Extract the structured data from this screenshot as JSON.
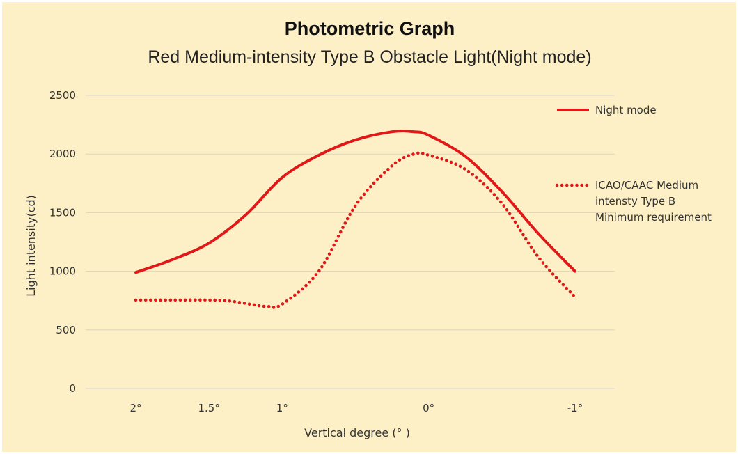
{
  "chart_data": {
    "type": "line",
    "title": "Photometric Graph",
    "subtitle": "Red Medium-intensity Type B Obstacle Light(Night mode)",
    "xlabel": "Vertical degree (° )",
    "ylabel": "Light intensity(cd)",
    "ylim": [
      0,
      2500
    ],
    "yticks": [
      0,
      500,
      1000,
      1500,
      2000,
      2500
    ],
    "x_direction": "decreasing left to right",
    "x_tick_labels": [
      "2°",
      "1.5°",
      "1°",
      "0°",
      "-1°"
    ],
    "x_ticks": [
      2,
      1.5,
      1,
      0,
      -1
    ],
    "grid": "horizontal",
    "legend_position": "right",
    "series": [
      {
        "name": "Night mode",
        "style": "solid",
        "color": "#e01818",
        "x": [
          2,
          1.75,
          1.5,
          1.25,
          1,
          0.75,
          0.5,
          0.25,
          0.1,
          0,
          -0.25,
          -0.5,
          -0.75,
          -1
        ],
        "y": [
          990,
          1100,
          1240,
          1480,
          1800,
          1990,
          2120,
          2190,
          2190,
          2160,
          1980,
          1680,
          1320,
          1000
        ]
      },
      {
        "name": "ICAO/CAAC Medium intensty Type B Minimum requirement",
        "legend_lines": [
          "ICAO/CAAC Medium",
          "intensty Type B",
          "Minimum requirement"
        ],
        "style": "dotted",
        "color": "#e01818",
        "x": [
          2,
          1.75,
          1.5,
          1.35,
          1.2,
          1.1,
          1,
          0.75,
          0.5,
          0.25,
          0.1,
          0,
          -0.25,
          -0.5,
          -0.75,
          -1
        ],
        "y": [
          755,
          755,
          755,
          745,
          715,
          700,
          720,
          1000,
          1560,
          1900,
          2000,
          1990,
          1870,
          1580,
          1120,
          780
        ]
      }
    ]
  }
}
